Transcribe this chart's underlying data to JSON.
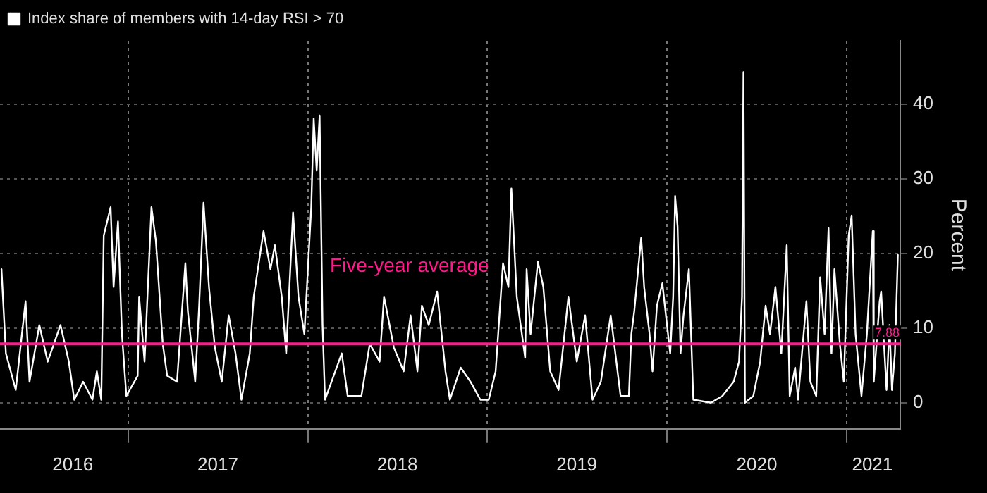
{
  "chart_data": {
    "type": "line",
    "x": [
      "2016-04-18",
      "2016-04-27",
      "2016-05-17",
      "2016-06-06",
      "2016-06-14",
      "2016-07-04",
      "2016-07-21",
      "2016-08-16",
      "2016-09-02",
      "2016-09-13",
      "2016-10-01",
      "2016-10-20",
      "2016-10-29",
      "2016-11-07",
      "2016-11-12",
      "2016-11-26",
      "2016-12-02",
      "2016-12-11",
      "2016-12-19",
      "2016-12-28",
      "2017-01-20",
      "2017-01-23",
      "2017-02-03",
      "2017-02-17",
      "2017-02-26",
      "2017-03-12",
      "2017-03-21",
      "2017-04-10",
      "2017-04-27",
      "2017-05-02",
      "2017-05-17",
      "2017-05-25",
      "2017-06-03",
      "2017-06-14",
      "2017-06-26",
      "2017-07-10",
      "2017-07-24",
      "2017-08-07",
      "2017-08-19",
      "2017-09-05",
      "2017-09-13",
      "2017-10-03",
      "2017-10-17",
      "2017-10-26",
      "2017-11-09",
      "2017-11-18",
      "2017-12-02",
      "2017-12-13",
      "2017-12-25",
      "2018-01-08",
      "2018-01-13",
      "2018-01-19",
      "2018-01-25",
      "2018-01-31",
      "2018-02-05",
      "2018-03-11",
      "2018-03-23",
      "2018-04-20",
      "2018-05-07",
      "2018-05-27",
      "2018-06-05",
      "2018-06-25",
      "2018-07-15",
      "2018-07-29",
      "2018-08-12",
      "2018-08-21",
      "2018-09-04",
      "2018-09-21",
      "2018-10-08",
      "2018-10-17",
      "2018-11-08",
      "2018-11-28",
      "2018-12-18",
      "2019-01-04",
      "2019-01-18",
      "2019-02-02",
      "2019-02-13",
      "2019-02-19",
      "2019-03-02",
      "2019-03-19",
      "2019-03-22",
      "2019-03-30",
      "2019-04-14",
      "2019-04-25",
      "2019-05-09",
      "2019-05-26",
      "2019-06-15",
      "2019-07-02",
      "2019-07-19",
      "2019-08-03",
      "2019-08-20",
      "2019-09-09",
      "2019-09-29",
      "2019-10-16",
      "2019-10-21",
      "2019-10-27",
      "2019-11-05",
      "2019-11-10",
      "2019-11-16",
      "2019-11-27",
      "2019-12-03",
      "2019-12-12",
      "2019-12-23",
      "2020-01-08",
      "2020-01-14",
      "2020-01-18",
      "2020-01-23",
      "2020-01-29",
      "2020-02-04",
      "2020-02-15",
      "2020-02-24",
      "2020-03-31",
      "2020-04-23",
      "2020-05-16",
      "2020-05-27",
      "2020-06-02",
      "2020-06-05",
      "2020-06-08",
      "2020-06-25",
      "2020-07-09",
      "2020-07-20",
      "2020-07-29",
      "2020-08-09",
      "2020-08-21",
      "2020-09-01",
      "2020-09-07",
      "2020-09-18",
      "2020-09-24",
      "2020-10-11",
      "2020-10-19",
      "2020-10-31",
      "2020-11-08",
      "2020-11-17",
      "2020-11-25",
      "2020-12-01",
      "2020-12-07",
      "2020-12-18",
      "2020-12-26",
      "2021-01-05",
      "2021-01-11",
      "2021-01-19",
      "2021-01-31",
      "2021-02-11",
      "2021-02-23",
      "2021-02-25",
      "2021-03-09",
      "2021-03-12",
      "2021-03-23",
      "2021-03-29",
      "2021-04-03",
      "2021-04-09",
      "2021-04-15"
    ],
    "series": [
      {
        "name": "Index share of members with 14-day RSI > 70",
        "color": "#ffffff",
        "values": [
          17.9,
          6.6,
          1.7,
          13.6,
          2.8,
          10.4,
          5.5,
          10.4,
          5.5,
          0.4,
          2.8,
          0.4,
          4.2,
          0.4,
          22.4,
          26.2,
          15.5,
          24.3,
          9.2,
          0.9,
          3.6,
          14.2,
          5.5,
          26.2,
          21.7,
          7.9,
          3.6,
          2.8,
          18.7,
          12.3,
          2.8,
          13.0,
          26.8,
          15.5,
          7.4,
          2.8,
          11.7,
          6.6,
          0.4,
          6.6,
          14.2,
          23.0,
          17.9,
          21.1,
          14.2,
          6.6,
          25.5,
          14.2,
          9.2,
          26.2,
          38.1,
          31.1,
          38.5,
          10.4,
          0.4,
          6.6,
          0.9,
          0.9,
          7.9,
          5.5,
          14.2,
          7.4,
          4.2,
          11.7,
          4.2,
          13.0,
          10.4,
          14.9,
          4.2,
          0.4,
          4.7,
          2.8,
          0.4,
          0.4,
          4.2,
          18.7,
          15.5,
          28.7,
          14.2,
          6.0,
          17.9,
          9.2,
          18.9,
          15.5,
          4.2,
          1.7,
          14.2,
          5.5,
          11.7,
          0.4,
          2.8,
          11.7,
          0.9,
          0.9,
          9.2,
          12.3,
          18.7,
          22.1,
          15.5,
          9.2,
          4.2,
          13.0,
          16.0,
          6.6,
          14.2,
          27.7,
          23.6,
          6.6,
          11.7,
          17.9,
          0.4,
          0,
          0.9,
          2.8,
          5.5,
          14.2,
          44.3,
          0,
          0.9,
          5.5,
          13.0,
          9.2,
          15.5,
          6.6,
          21.1,
          0.9,
          4.7,
          0.4,
          13.6,
          2.8,
          0.9,
          16.8,
          9.2,
          23.4,
          6.6,
          17.9,
          7.9,
          2.8,
          22.4,
          25.1,
          9.2,
          0.9,
          9.2,
          23.0,
          2.8,
          13.6,
          14.9,
          1.7,
          10.4,
          1.7,
          6.6,
          19.8
        ]
      }
    ],
    "xlim": [
      "2016-04-15",
      "2021-04-20"
    ],
    "xticks": [
      {
        "value": "2016-09-10",
        "label": "2016"
      },
      {
        "value": "2017-01-01",
        "label": null
      },
      {
        "value": "2017-07-02",
        "label": "2017"
      },
      {
        "value": "2018-01-01",
        "label": null
      },
      {
        "value": "2018-07-02",
        "label": "2018"
      },
      {
        "value": "2019-01-01",
        "label": null
      },
      {
        "value": "2019-07-02",
        "label": "2019"
      },
      {
        "value": "2020-01-01",
        "label": null
      },
      {
        "value": "2020-07-02",
        "label": "2020"
      },
      {
        "value": "2021-01-01",
        "label": null
      },
      {
        "value": "2021-02-22",
        "label": "2021"
      }
    ],
    "ylim": [
      -3.5,
      48.5
    ],
    "yticks": [
      0,
      10,
      20,
      30,
      40
    ],
    "ylabel": "Percent",
    "ref_lines": [
      {
        "axis": "y",
        "value": 7.88,
        "label": "Five-year average",
        "color": "#ff1a8c"
      }
    ],
    "annotations": [
      {
        "text": "7.88",
        "x": "2021-04-15",
        "y": 7.88
      }
    ],
    "grid": true,
    "legend": "top left",
    "marker": "none",
    "line_style": "solid"
  }
}
